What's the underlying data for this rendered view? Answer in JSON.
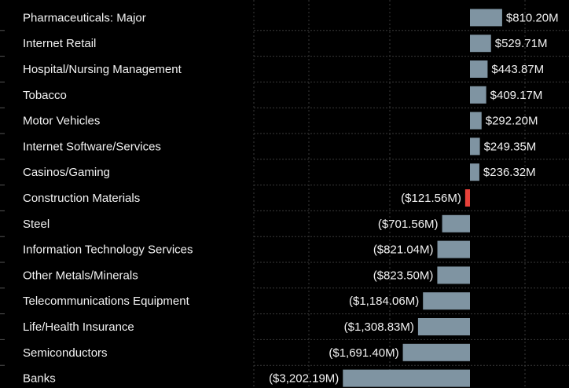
{
  "chart_data": {
    "type": "bar",
    "orientation": "horizontal",
    "categories": [
      "Pharmaceuticals: Major",
      "Internet Retail",
      "Hospital/Nursing Management",
      "Tobacco",
      "Motor Vehicles",
      "Internet Software/Services",
      "Casinos/Gaming",
      "Construction Materials",
      "Steel",
      "Information Technology Services",
      "Other Metals/Minerals",
      "Telecommunications Equipment",
      "Life/Health Insurance",
      "Semiconductors",
      "Banks"
    ],
    "values": [
      810.2,
      529.71,
      443.87,
      409.17,
      292.2,
      249.35,
      236.32,
      -121.56,
      -701.56,
      -821.04,
      -823.5,
      -1184.06,
      -1308.83,
      -1691.4,
      -3202.19
    ],
    "value_labels": [
      "$810.20M",
      "$529.71M",
      "$443.87M",
      "$409.17M",
      "$292.20M",
      "$249.35M",
      "$236.32M",
      "($121.56M)",
      "($701.56M)",
      "($821.04M)",
      "($823.50M)",
      "($1,184.06M)",
      "($1,308.83M)",
      "($1,691.40M)",
      "($3,202.19M)"
    ],
    "colors": [
      "#7f94a2",
      "#7f94a2",
      "#7f94a2",
      "#7f94a2",
      "#7f94a2",
      "#7f94a2",
      "#7f94a2",
      "#e8413a",
      "#7f94a2",
      "#7f94a2",
      "#7f94a2",
      "#7f94a2",
      "#7f94a2",
      "#7f94a2",
      "#7f94a2"
    ]
  }
}
